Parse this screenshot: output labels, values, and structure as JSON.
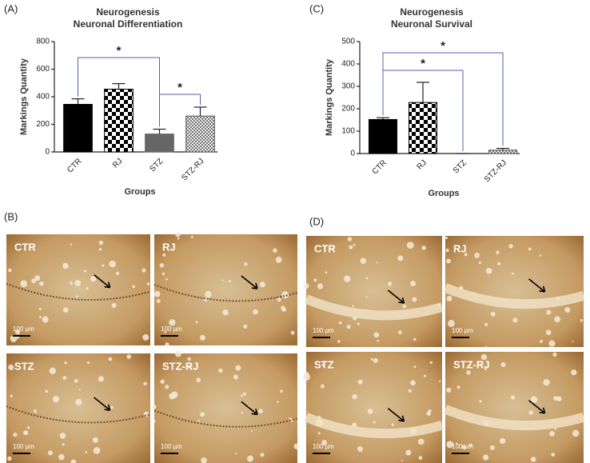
{
  "chart_data": [
    {
      "type": "bar",
      "panel": "(A)",
      "title": "Neurogenesis",
      "subtitle": "Neuronal Differentiation",
      "y_label": "Markings Quantity",
      "x_label": "Groups",
      "categories": [
        "CTR",
        "RJ",
        "STZ",
        "STZ-RJ"
      ],
      "values": [
        345,
        455,
        130,
        260
      ],
      "errors": [
        40,
        40,
        35,
        65
      ],
      "colors": [
        "#000000",
        "#000000",
        "#666666",
        "#555555"
      ],
      "patterns": [
        "solid",
        "checker",
        "solid",
        "fine-checker"
      ],
      "ylim": [
        0,
        800
      ],
      "yticks": [
        0,
        200,
        400,
        600,
        800
      ],
      "annotations": [
        "*",
        "*"
      ]
    },
    {
      "type": "bar",
      "panel": "(C)",
      "title": "Neurogenesis",
      "subtitle": "Neuronal Survival",
      "y_label": "Markings Quantity",
      "x_label": "Groups",
      "categories": [
        "CTR",
        "RJ",
        "STZ",
        "STZ-RJ"
      ],
      "values": [
        152,
        228,
        0,
        15
      ],
      "errors": [
        8,
        90,
        0,
        8
      ],
      "colors": [
        "#000000",
        "#000000",
        "#666666",
        "#555555"
      ],
      "patterns": [
        "solid",
        "checker",
        "solid",
        "fine-checker"
      ],
      "ylim": [
        0,
        500
      ],
      "yticks": [
        0,
        100,
        200,
        300,
        400,
        500
      ],
      "annotations": [
        "*",
        "*"
      ]
    }
  ],
  "micrographs": [
    {
      "panel": "(B)",
      "images": [
        {
          "label": "CTR",
          "scale": "100 µm"
        },
        {
          "label": "RJ",
          "scale": "100 µm"
        },
        {
          "label": "STZ",
          "scale": "100 µm"
        },
        {
          "label": "STZ-RJ",
          "scale": "100 µm"
        }
      ]
    },
    {
      "panel": "(D)",
      "images": [
        {
          "label": "CTR",
          "scale": "100 µm"
        },
        {
          "label": "RJ",
          "scale": "100 µm"
        },
        {
          "label": "STZ",
          "scale": "100 µm"
        },
        {
          "label": "STZ-RJ",
          "scale": "100 µm"
        }
      ]
    }
  ]
}
